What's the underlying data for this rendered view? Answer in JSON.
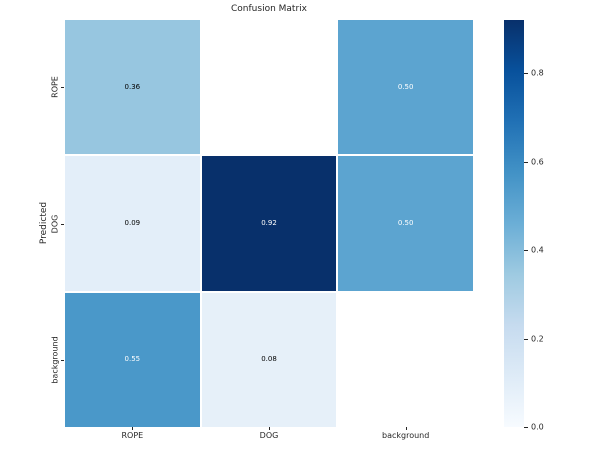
{
  "title": "Confusion Matrix",
  "chart_data": {
    "type": "heatmap",
    "title": "Confusion Matrix",
    "xlabel": "",
    "ylabel": "Predicted",
    "x_categories": [
      "ROPE",
      "DOG",
      "background"
    ],
    "y_categories": [
      "ROPE",
      "DOG",
      "background"
    ],
    "values": [
      [
        0.36,
        null,
        0.5
      ],
      [
        0.09,
        0.92,
        0.5
      ],
      [
        0.55,
        0.08,
        null
      ]
    ],
    "cell_labels": [
      [
        "0.36",
        "",
        "0.50"
      ],
      [
        "0.09",
        "0.92",
        "0.50"
      ],
      [
        "0.55",
        "0.08",
        ""
      ]
    ],
    "colormap": "Blues",
    "vmin": 0.0,
    "vmax": 0.92,
    "colorbar_ticks": [
      "0.0",
      "0.2",
      "0.4",
      "0.6",
      "0.8"
    ],
    "colorbar_tick_values": [
      0.0,
      0.2,
      0.4,
      0.6,
      0.8
    ],
    "legend_position": "right-colorbar",
    "grid": false,
    "notes": "cells (ROPE,DOG) and (background,background) are empty/NaN (white, no annotation)"
  },
  "style": {
    "background": "#ffffff",
    "grid_line_color": "#ffffff",
    "tick_color": "#262626",
    "text_color": "#262626",
    "cell_colors": [
      [
        "#97c6e0",
        "#ffffff",
        "#5ca4d0"
      ],
      [
        "#e3eef9",
        "#08306b",
        "#5ca4d0"
      ],
      [
        "#4a98c9",
        "#e6f0f9",
        "#ffffff"
      ]
    ],
    "cell_text_colors": [
      [
        "#000000",
        "",
        "#ffffff"
      ],
      [
        "#000000",
        "#ffffff",
        "#ffffff"
      ],
      [
        "#ffffff",
        "#000000",
        ""
      ]
    ],
    "colorbar_gradient_bottom_to_top": [
      "#f7fbff",
      "#deebf7",
      "#c6dbef",
      "#9ecae1",
      "#6baed6",
      "#4292c6",
      "#2171b5",
      "#08519c",
      "#08306b"
    ]
  }
}
